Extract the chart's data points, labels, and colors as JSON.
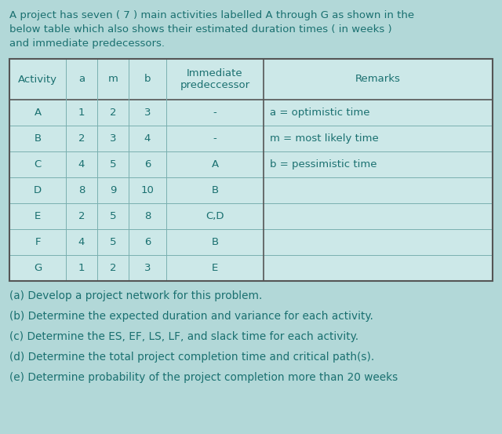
{
  "background_color": "#b2d8d8",
  "title_lines": [
    "A project has seven ( 7 ) main activities labelled A through G as shown in the",
    "below table which also shows their estimated duration times ( in weeks )",
    "and immediate predecessors."
  ],
  "table_header": [
    "Activity",
    "a",
    "m",
    "b",
    "Immediate\npredeccessor",
    "Remarks"
  ],
  "table_rows": [
    [
      "A",
      "1",
      "2",
      "3",
      "-",
      "a = optimistic time"
    ],
    [
      "B",
      "2",
      "3",
      "4",
      "-",
      "m = most likely time"
    ],
    [
      "C",
      "4",
      "5",
      "6",
      "A",
      "b = pessimistic time"
    ],
    [
      "D",
      "8",
      "9",
      "10",
      "B",
      ""
    ],
    [
      "E",
      "2",
      "5",
      "8",
      "C,D",
      ""
    ],
    [
      "F",
      "4",
      "5",
      "6",
      "B",
      ""
    ],
    [
      "G",
      "1",
      "2",
      "3",
      "E",
      ""
    ]
  ],
  "questions": [
    "(a) Develop a project network for this problem.",
    "(b) Determine the expected duration and variance for each activity.",
    "(c) Determine the ES, EF, LS, LF, and slack time for each activity.",
    "(d) Determine the total project completion time and critical path(s).",
    "(e) Determine probability of the project completion more than 20 weeks"
  ],
  "text_color": "#1a7070",
  "table_bg": "#cce8e8",
  "table_line_color": "#7ab0b0",
  "table_outer_color": "#555555",
  "font_size_title": 9.5,
  "font_size_table": 9.5,
  "font_size_questions": 9.8
}
